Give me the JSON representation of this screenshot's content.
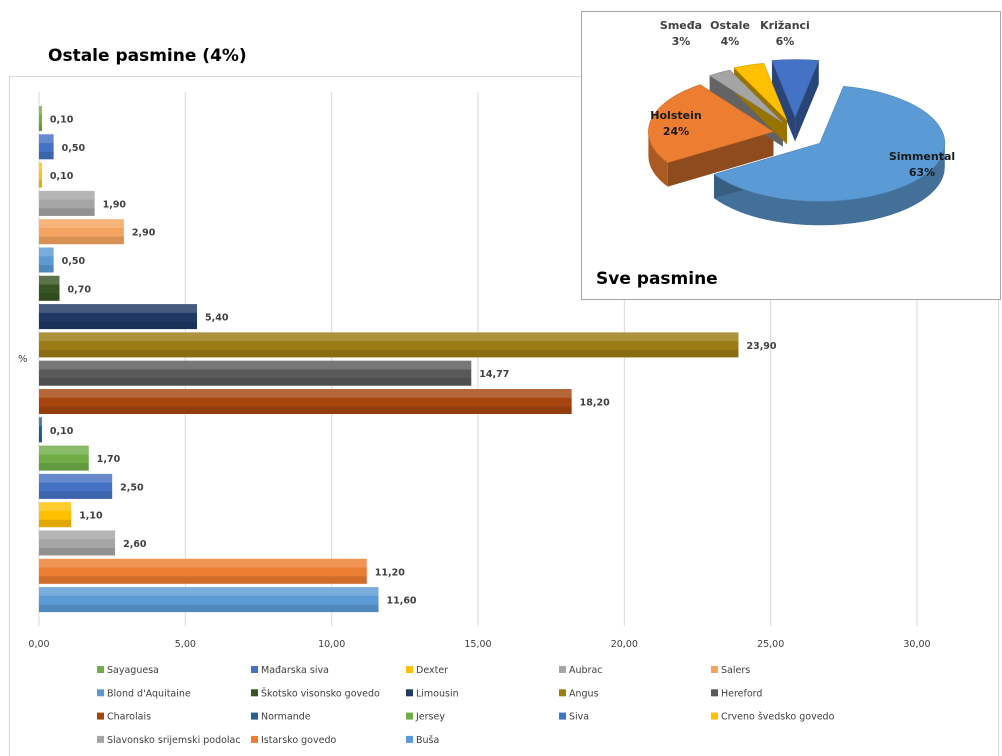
{
  "title": "Ostale pasmine (4%)",
  "chart_data": [
    {
      "type": "bar",
      "orientation": "horizontal",
      "ylabel": "%",
      "xlim": [
        0,
        30
      ],
      "xticks": [
        "0,00",
        "5,00",
        "10,00",
        "15,00",
        "20,00",
        "25,00",
        "30,00"
      ],
      "grid": true,
      "legend_position": "bottom",
      "series": [
        {
          "name": "Sayaguesa",
          "value": 0.1,
          "label": "0,10",
          "color": "#70ad47"
        },
        {
          "name": "Mađarska siva",
          "value": 0.5,
          "label": "0,50",
          "color": "#4472c4"
        },
        {
          "name": "Dexter",
          "value": 0.1,
          "label": "0,10",
          "color": "#ffc000"
        },
        {
          "name": "Aubrac",
          "value": 1.9,
          "label": "1,90",
          "color": "#a5a5a5"
        },
        {
          "name": "Salers",
          "value": 2.9,
          "label": "2,90",
          "color": "#f4a460"
        },
        {
          "name": "Blond d'Aquitaine",
          "value": 0.5,
          "label": "0,50",
          "color": "#5b9bd5"
        },
        {
          "name": "Škotsko visonsko govedo",
          "value": 0.7,
          "label": "0,70",
          "color": "#375623"
        },
        {
          "name": "Limousin",
          "value": 5.4,
          "label": "5,40",
          "color": "#1f3864"
        },
        {
          "name": "Angus",
          "value": 23.9,
          "label": "23,90",
          "color": "#9c7a14"
        },
        {
          "name": "Hereford",
          "value": 14.77,
          "label": "14,77",
          "color": "#595959"
        },
        {
          "name": "Charolais",
          "value": 18.2,
          "label": "18,20",
          "color": "#a8450f"
        },
        {
          "name": "Normande",
          "value": 0.1,
          "label": "0,10",
          "color": "#255e91"
        },
        {
          "name": "Jersey",
          "value": 1.7,
          "label": "1,70",
          "color": "#70ad47"
        },
        {
          "name": "Siva",
          "value": 2.5,
          "label": "2,50",
          "color": "#4472c4"
        },
        {
          "name": "Crveno švedsko govedo",
          "value": 1.1,
          "label": "1,10",
          "color": "#ffc000"
        },
        {
          "name": "Slavonsko srijemski podolac",
          "value": 2.6,
          "label": "2,60",
          "color": "#a5a5a5"
        },
        {
          "name": "Istarsko govedo",
          "value": 11.2,
          "label": "11,20",
          "color": "#ed7d31"
        },
        {
          "name": "Buša",
          "value": 11.6,
          "label": "11,60",
          "color": "#5b9bd5"
        }
      ]
    },
    {
      "type": "pie",
      "title": "Sve pasmine",
      "slices": [
        {
          "name": "Simmental",
          "value": 63,
          "label": "63%",
          "color": "#5b9bd5"
        },
        {
          "name": "Holstein",
          "value": 24,
          "label": "24%",
          "color": "#ed7d31"
        },
        {
          "name": "Smeđa",
          "value": 3,
          "label": "3%",
          "color": "#a5a5a5"
        },
        {
          "name": "Ostale",
          "value": 4,
          "label": "4%",
          "color": "#ffc000"
        },
        {
          "name": "Križanci",
          "value": 6,
          "label": "6%",
          "color": "#4472c4"
        }
      ]
    }
  ]
}
